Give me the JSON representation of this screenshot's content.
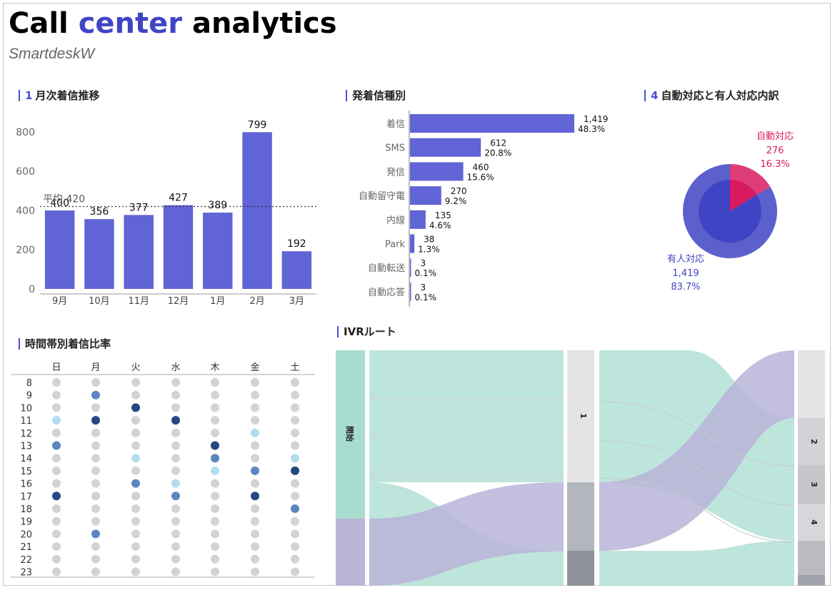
{
  "header": {
    "title_part1": "Call",
    "title_accent": "center",
    "title_part2": "analytics",
    "subtitle": "SmartdeskW"
  },
  "sections": {
    "monthly": {
      "num": "1",
      "title": "月次着信推移"
    },
    "types": {
      "num": "",
      "title": "発着信種別"
    },
    "auto": {
      "num": "4",
      "title": "自動対応と有人対応内訳"
    },
    "hourly": {
      "num": "",
      "title": "時間帯別着信比率"
    },
    "ivr": {
      "num": "",
      "title": "IVRルート"
    }
  },
  "colors": {
    "bar": "#6164d4",
    "accent": "#4a4fd0",
    "auto_pink": "#d81b60",
    "human_blue": "#3f44c4",
    "sankey_green": "#a8dccf",
    "sankey_purple": "#b9b4d8"
  },
  "chart_data": [
    {
      "id": "monthly",
      "type": "bar",
      "categories": [
        "9月",
        "10月",
        "11月",
        "12月",
        "1月",
        "2月",
        "3月"
      ],
      "values": [
        400,
        356,
        377,
        427,
        389,
        799,
        192
      ],
      "data_labels": [
        "400",
        "356",
        "377",
        "427",
        "389",
        "799",
        "192"
      ],
      "y_ticks": [
        0,
        200,
        400,
        600,
        800
      ],
      "ylim": [
        0,
        800
      ],
      "average": {
        "label": "平均 420",
        "value": 420
      },
      "grid": false
    },
    {
      "id": "types",
      "type": "bar",
      "orientation": "horizontal",
      "categories": [
        "着信",
        "SMS",
        "発信",
        "自動留守電",
        "内線",
        "Park",
        "自動転送",
        "自動応答"
      ],
      "values": [
        1419,
        612,
        460,
        270,
        135,
        38,
        3,
        3
      ],
      "value_labels": [
        "1,419",
        "612",
        "460",
        "270",
        "135",
        "38",
        "3",
        "3"
      ],
      "percent_labels": [
        "48.3%",
        "20.8%",
        "15.6%",
        "9.2%",
        "4.6%",
        "1.3%",
        "0.1%",
        "0.1%"
      ],
      "xlim": [
        0,
        1419
      ]
    },
    {
      "id": "auto",
      "type": "pie",
      "slices": [
        {
          "name": "自動対応",
          "value": 276,
          "value_label": "276",
          "percent": "16.3%",
          "color": "#d81b60"
        },
        {
          "name": "有人対応",
          "value": 1419,
          "value_label": "1,419",
          "percent": "83.7%",
          "color": "#3f44c4"
        }
      ]
    },
    {
      "id": "hourly",
      "type": "heatmap",
      "columns": [
        "日",
        "月",
        "火",
        "水",
        "木",
        "金",
        "土"
      ],
      "rows": [
        "8",
        "9",
        "10",
        "11",
        "12",
        "13",
        "14",
        "15",
        "16",
        "17",
        "18",
        "19",
        "20",
        "21",
        "22",
        "23"
      ],
      "levels": [
        [
          0,
          0,
          0,
          0,
          0,
          0,
          0
        ],
        [
          0,
          3,
          0,
          0,
          0,
          0,
          0
        ],
        [
          0,
          0,
          4,
          0,
          0,
          0,
          0
        ],
        [
          1,
          4,
          0,
          4,
          0,
          0,
          0
        ],
        [
          0,
          0,
          0,
          0,
          0,
          1,
          0
        ],
        [
          3,
          0,
          0,
          0,
          4,
          0,
          0
        ],
        [
          0,
          0,
          1,
          0,
          3,
          0,
          1
        ],
        [
          0,
          0,
          0,
          0,
          1,
          3,
          4
        ],
        [
          0,
          0,
          3,
          1,
          0,
          0,
          0
        ],
        [
          4,
          0,
          0,
          3,
          0,
          4,
          0
        ],
        [
          0,
          0,
          0,
          0,
          0,
          0,
          3
        ],
        [
          0,
          0,
          0,
          0,
          0,
          0,
          0
        ],
        [
          0,
          3,
          0,
          0,
          0,
          0,
          0
        ],
        [
          0,
          0,
          0,
          0,
          0,
          0,
          0
        ],
        [
          0,
          0,
          0,
          0,
          0,
          0,
          0
        ],
        [
          0,
          0,
          0,
          0,
          0,
          0,
          0
        ]
      ],
      "level_colors": [
        "#d3d3d3",
        "#b3dcef",
        "#7cb1dc",
        "#5c86c0",
        "#24487f"
      ]
    },
    {
      "id": "ivr",
      "type": "sankey",
      "nodes": [
        "開始",
        "1",
        "2",
        "3",
        "4"
      ]
    }
  ]
}
